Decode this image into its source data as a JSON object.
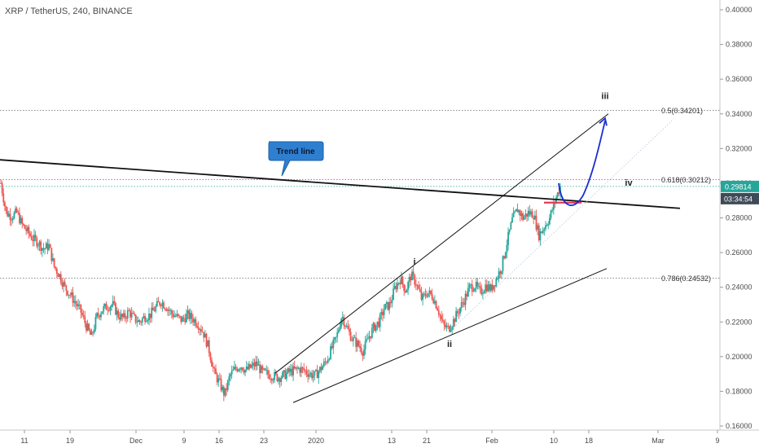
{
  "header": {
    "symbol_title": "XRP / TetherUS, 240, BINANCE"
  },
  "colors": {
    "up": "#26a69a",
    "down": "#ef5350",
    "blue_arrow": "#1a2ecf",
    "callout": "#2f7fd0",
    "price_tag": "#26a69a",
    "timer_tag": "#3e4a57"
  },
  "price_tags": {
    "last_price": "0.29814",
    "countdown": "03:34:54"
  },
  "callout": {
    "label": "Trend line"
  },
  "fib_levels": [
    {
      "label": "0.5(0.34201)",
      "value": 0.34201
    },
    {
      "label": "0.618(0.30212)",
      "value": 0.30212
    },
    {
      "label": "0.786(0.24532)",
      "value": 0.24532
    }
  ],
  "wave_labels": [
    {
      "text": "i"
    },
    {
      "text": "ii"
    },
    {
      "text": "iii"
    },
    {
      "text": "iv"
    }
  ],
  "chart_data": {
    "type": "candlestick",
    "y_axis": {
      "ylim": [
        0.16,
        0.4
      ],
      "ticks": [
        "0.40000",
        "0.38000",
        "0.36000",
        "0.34000",
        "0.32000",
        "0.30000",
        "0.28000",
        "0.26000",
        "0.24000",
        "0.22000",
        "0.20000",
        "0.18000",
        "0.16000"
      ],
      "tick_values": [
        0.4,
        0.38,
        0.36,
        0.34,
        0.32,
        0.3,
        0.28,
        0.26,
        0.24,
        0.22,
        0.2,
        0.18,
        0.16
      ]
    },
    "x_axis": {
      "ticks": [
        "11",
        "19",
        "Dec",
        "9",
        "16",
        "23",
        "2020",
        "13",
        "21",
        "Feb",
        "10",
        "18",
        "Mar",
        "9"
      ]
    },
    "price_path": [
      0.3,
      0.283,
      0.281,
      0.283,
      0.276,
      0.272,
      0.268,
      0.266,
      0.262,
      0.264,
      0.252,
      0.247,
      0.24,
      0.236,
      0.231,
      0.226,
      0.218,
      0.211,
      0.223,
      0.227,
      0.229,
      0.23,
      0.224,
      0.222,
      0.226,
      0.222,
      0.22,
      0.223,
      0.224,
      0.228,
      0.232,
      0.229,
      0.225,
      0.223,
      0.221,
      0.224,
      0.222,
      0.219,
      0.214,
      0.205,
      0.191,
      0.185,
      0.178,
      0.189,
      0.193,
      0.195,
      0.192,
      0.194,
      0.196,
      0.191,
      0.19,
      0.189,
      0.188,
      0.189,
      0.191,
      0.192,
      0.193,
      0.192,
      0.19,
      0.189,
      0.193,
      0.197,
      0.204,
      0.211,
      0.224,
      0.216,
      0.21,
      0.207,
      0.203,
      0.211,
      0.217,
      0.22,
      0.228,
      0.23,
      0.24,
      0.245,
      0.238,
      0.247,
      0.242,
      0.233,
      0.237,
      0.235,
      0.228,
      0.218,
      0.216,
      0.221,
      0.227,
      0.233,
      0.24,
      0.241,
      0.237,
      0.241,
      0.239,
      0.245,
      0.252,
      0.266,
      0.279,
      0.285,
      0.28,
      0.283,
      0.282,
      0.27,
      0.275,
      0.28,
      0.29,
      0.298
    ],
    "trend_line": {
      "label": "Trend line",
      "points": [
        [
          0,
          0.3135
        ],
        [
          835,
          0.2855
        ]
      ]
    },
    "channel": {
      "upper": [
        [
          338,
          0.1905
        ],
        [
          747,
          0.34
        ]
      ],
      "lower": [
        [
          360,
          0.1735
        ],
        [
          745,
          0.2508
        ]
      ]
    },
    "projection": {
      "target": 0.338,
      "end_label": "iii"
    }
  }
}
